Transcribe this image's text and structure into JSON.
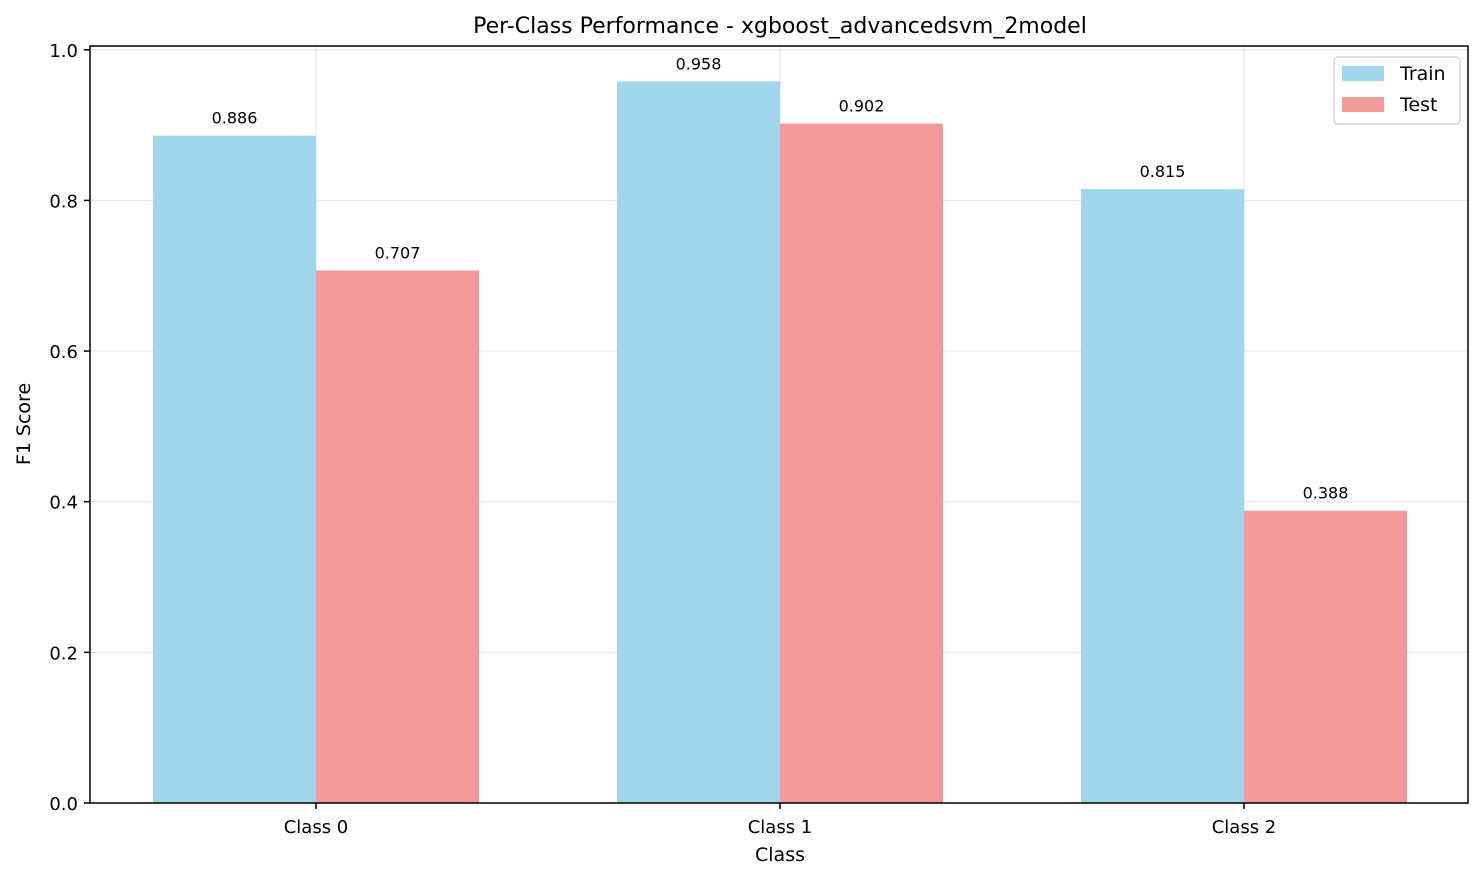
{
  "chart_data": {
    "type": "bar",
    "title": "Per-Class Performance - xgboost_advancedsvm_2model",
    "xlabel": "Class",
    "ylabel": "F1 Score",
    "categories": [
      "Class 0",
      "Class 1",
      "Class 2"
    ],
    "series": [
      {
        "name": "Train",
        "values": [
          0.886,
          0.958,
          0.815
        ],
        "color": "#a0d6ec"
      },
      {
        "name": "Test",
        "values": [
          0.707,
          0.902,
          0.388
        ],
        "color": "#f29a99"
      }
    ],
    "data_labels": [
      [
        "0.886",
        "0.958",
        "0.815"
      ],
      [
        "0.707",
        "0.902",
        "0.388"
      ]
    ],
    "ylim": [
      0,
      1.005
    ],
    "yticks": [
      0.0,
      0.2,
      0.4,
      0.6,
      0.8,
      1.0
    ],
    "ytick_labels": [
      "0.0",
      "0.2",
      "0.4",
      "0.6",
      "0.8",
      "1.0"
    ],
    "grid": true,
    "legend_position": "top-right"
  }
}
